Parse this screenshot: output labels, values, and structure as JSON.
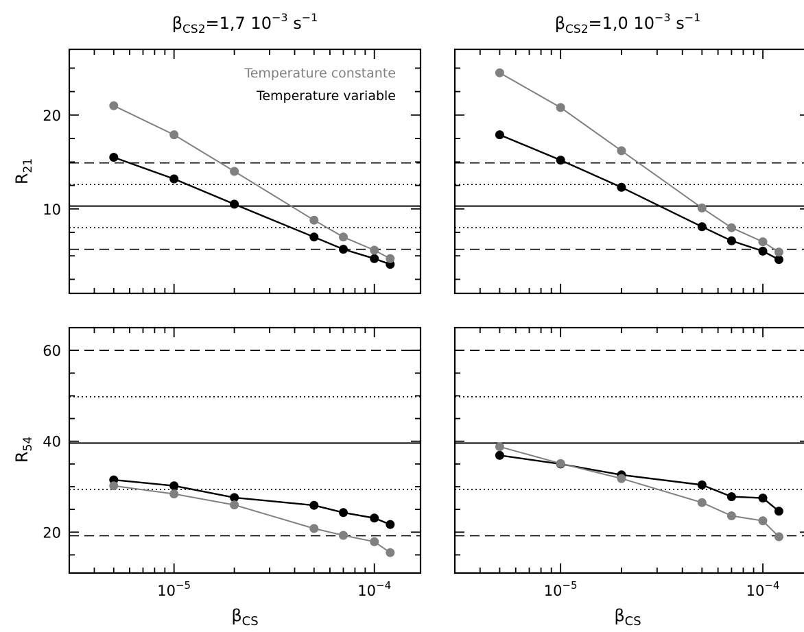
{
  "col_titles": [
    {
      "sym": "β",
      "sub": "CS2",
      "rest": "=1,7  10",
      "exp": "−3",
      "unit": "  s",
      "unit_exp": "−1"
    },
    {
      "sym": "β",
      "sub": "CS2",
      "rest": "=1,0  10",
      "exp": "−3",
      "unit": "  s",
      "unit_exp": "−1"
    }
  ],
  "xlabel": {
    "sym": "β",
    "sub": "CS"
  },
  "ylabels": {
    "top": {
      "main": "R",
      "sub": "21"
    },
    "bottom": {
      "main": "R",
      "sub": "54"
    }
  },
  "legend": {
    "constant": "Temperature constante",
    "variable": "Temperature variable"
  },
  "x_ticks": [
    {
      "value": 1e-05,
      "base": "10",
      "exp": "−5"
    },
    {
      "value": 0.0001,
      "base": "10",
      "exp": "−4"
    }
  ],
  "colors": {
    "constant": "#808080",
    "variable": "#000000"
  },
  "chart_data": [
    {
      "type": "line",
      "panel": "top-left",
      "x_scale": "log",
      "xlim": [
        3e-06,
        0.00017
      ],
      "ylim": [
        1,
        27
      ],
      "y_ticks": [
        10,
        20
      ],
      "x": [
        5e-06,
        1e-05,
        2e-05,
        5e-05,
        7e-05,
        0.0001,
        0.00012
      ],
      "series": [
        {
          "name": "Temperature constante",
          "values": [
            21.0,
            17.9,
            14.0,
            8.8,
            7.0,
            5.6,
            4.7
          ]
        },
        {
          "name": "Temperature variable",
          "values": [
            15.5,
            13.2,
            10.5,
            7.0,
            5.7,
            4.7,
            4.1
          ]
        }
      ],
      "hlines": [
        {
          "y": 10.3,
          "style": "solid"
        },
        {
          "y": 12.6,
          "style": "dotted"
        },
        {
          "y": 8.0,
          "style": "dotted"
        },
        {
          "y": 14.9,
          "style": "dashed"
        },
        {
          "y": 5.7,
          "style": "dashed"
        }
      ]
    },
    {
      "type": "line",
      "panel": "top-right",
      "x_scale": "log",
      "xlim": [
        3e-06,
        0.00017
      ],
      "ylim": [
        1,
        27
      ],
      "y_ticks": [
        10,
        20
      ],
      "x": [
        5e-06,
        1e-05,
        2e-05,
        5e-05,
        7e-05,
        0.0001,
        0.00012
      ],
      "series": [
        {
          "name": "Temperature constante",
          "values": [
            24.5,
            20.8,
            16.2,
            10.1,
            8.0,
            6.5,
            5.4
          ]
        },
        {
          "name": "Temperature variable",
          "values": [
            17.9,
            15.2,
            12.3,
            8.1,
            6.6,
            5.5,
            4.6
          ]
        }
      ],
      "hlines": [
        {
          "y": 10.3,
          "style": "solid"
        },
        {
          "y": 12.6,
          "style": "dotted"
        },
        {
          "y": 8.0,
          "style": "dotted"
        },
        {
          "y": 14.9,
          "style": "dashed"
        },
        {
          "y": 5.7,
          "style": "dashed"
        }
      ]
    },
    {
      "type": "line",
      "panel": "bottom-left",
      "x_scale": "log",
      "xlim": [
        3e-06,
        0.00017
      ],
      "ylim": [
        11,
        65
      ],
      "y_ticks": [
        20,
        40,
        60
      ],
      "x": [
        5e-06,
        1e-05,
        2e-05,
        5e-05,
        7e-05,
        0.0001,
        0.00012
      ],
      "series": [
        {
          "name": "Temperature constante",
          "values": [
            30.2,
            28.4,
            26.0,
            20.8,
            19.3,
            17.9,
            15.5
          ]
        },
        {
          "name": "Temperature variable",
          "values": [
            31.5,
            30.2,
            27.6,
            25.9,
            24.3,
            23.1,
            21.7
          ]
        }
      ],
      "hlines": [
        {
          "y": 39.6,
          "style": "solid"
        },
        {
          "y": 49.8,
          "style": "dotted"
        },
        {
          "y": 29.4,
          "style": "dotted"
        },
        {
          "y": 60.0,
          "style": "dashed"
        },
        {
          "y": 19.2,
          "style": "dashed"
        }
      ]
    },
    {
      "type": "line",
      "panel": "bottom-right",
      "x_scale": "log",
      "xlim": [
        3e-06,
        0.00017
      ],
      "ylim": [
        11,
        65
      ],
      "y_ticks": [
        20,
        40,
        60
      ],
      "x": [
        5e-06,
        1e-05,
        2e-05,
        5e-05,
        7e-05,
        0.0001,
        0.00012
      ],
      "series": [
        {
          "name": "Temperature constante",
          "values": [
            38.8,
            35.1,
            31.8,
            26.5,
            23.6,
            22.5,
            19.0
          ]
        },
        {
          "name": "Temperature variable",
          "values": [
            36.9,
            35.0,
            32.6,
            30.4,
            27.8,
            27.5,
            24.6
          ]
        }
      ],
      "hlines": [
        {
          "y": 39.6,
          "style": "solid"
        },
        {
          "y": 49.8,
          "style": "dotted"
        },
        {
          "y": 29.4,
          "style": "dotted"
        },
        {
          "y": 60.0,
          "style": "dashed"
        },
        {
          "y": 19.2,
          "style": "dashed"
        }
      ]
    }
  ]
}
